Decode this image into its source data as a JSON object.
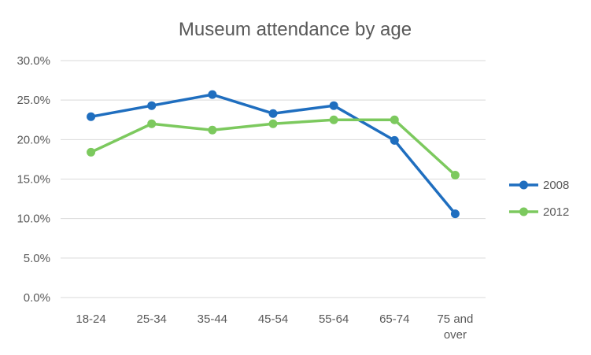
{
  "chart_data": {
    "type": "line",
    "title": "Museum attendance by age",
    "xlabel": "",
    "ylabel": "",
    "categories": [
      "18-24",
      "25-34",
      "35-44",
      "45-54",
      "55-64",
      "65-74",
      "75 and over"
    ],
    "category_lines": [
      [
        "18-24"
      ],
      [
        "25-34"
      ],
      [
        "35-44"
      ],
      [
        "45-54"
      ],
      [
        "55-64"
      ],
      [
        "65-74"
      ],
      [
        "75 and",
        "over"
      ]
    ],
    "yticks": [
      "0.0%",
      "5.0%",
      "10.0%",
      "15.0%",
      "20.0%",
      "25.0%",
      "30.0%"
    ],
    "ylim": [
      0,
      30
    ],
    "grid": true,
    "legend_position": "right",
    "series": [
      {
        "name": "2008",
        "color": "#1f6ebf",
        "values": [
          22.9,
          24.3,
          25.7,
          23.3,
          24.3,
          19.9,
          10.6
        ]
      },
      {
        "name": "2012",
        "color": "#7cc95e",
        "values": [
          18.4,
          22.0,
          21.2,
          22.0,
          22.5,
          22.5,
          15.5
        ]
      }
    ]
  }
}
